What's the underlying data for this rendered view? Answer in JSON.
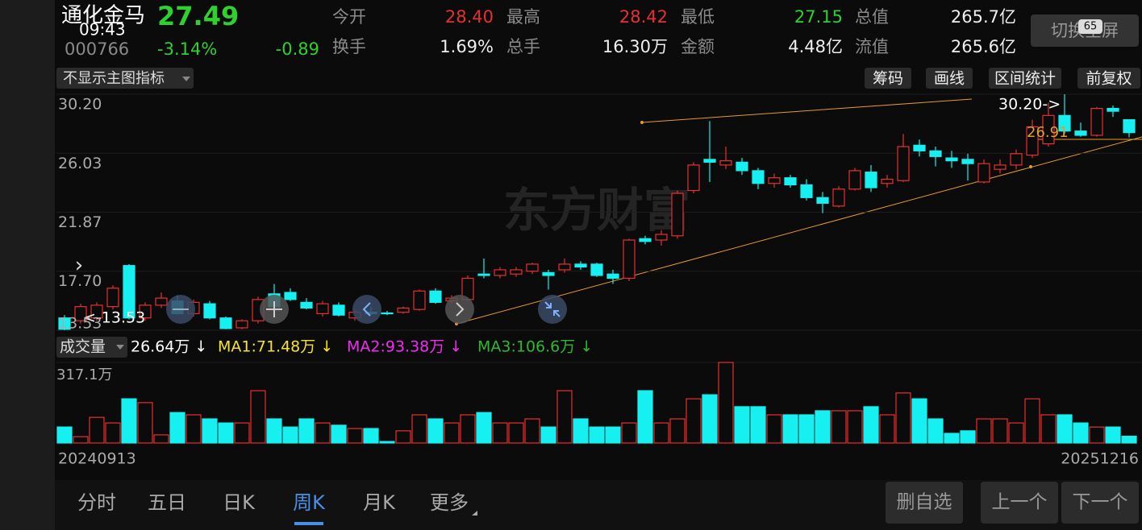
{
  "status_bar": {
    "time": "09:43",
    "battery": "65"
  },
  "header": {
    "name": "通化金马",
    "price": "27.49",
    "code": "000766",
    "change_pct": "-3.14%",
    "change": "-0.89",
    "stats": [
      {
        "label": "今开",
        "value": "28.40",
        "color": "#e8302f"
      },
      {
        "label": "最高",
        "value": "28.42",
        "color": "#e8302f"
      },
      {
        "label": "最低",
        "value": "27.15",
        "color": "#2ed12e"
      },
      {
        "label": "总值",
        "value": "265.7亿",
        "color": "#eeeeee"
      },
      {
        "label": "换手",
        "value": "1.69%",
        "color": "#eeeeee"
      },
      {
        "label": "总手",
        "value": "16.30万",
        "color": "#eeeeee"
      },
      {
        "label": "金额",
        "value": "4.48亿",
        "color": "#eeeeee"
      },
      {
        "label": "流值",
        "value": "265.6亿",
        "color": "#eeeeee"
      }
    ],
    "fullscreen_button": "切换全屏"
  },
  "toolbar": {
    "indicator": "不显示主图指标",
    "buttons": [
      "筹码",
      "画线",
      "区间统计",
      "前复权"
    ]
  },
  "price_chart": {
    "ylim": [
      13.53,
      30.2
    ],
    "yticks": [
      {
        "value": 30.2,
        "label": "30.20"
      },
      {
        "value": 26.03,
        "label": "26.03"
      },
      {
        "value": 21.87,
        "label": "21.87"
      },
      {
        "value": 17.7,
        "label": "17.70"
      },
      {
        "value": 13.53,
        "label": "13.53"
      }
    ],
    "watermark": "东方财富",
    "high_label": "30.20->",
    "low_label": "<-13.53",
    "line_label": "26.91",
    "up_color": "#e8302f",
    "down_color": "#17f0f0",
    "candles": [
      [
        14.4,
        14.6,
        13.53,
        13.6
      ],
      [
        14.2,
        15.4,
        14.0,
        15.2
      ],
      [
        14.4,
        15.5,
        14.2,
        15.3
      ],
      [
        15.2,
        16.7,
        15.0,
        16.5
      ],
      [
        18.1,
        18.2,
        14.3,
        14.4
      ],
      [
        14.4,
        15.5,
        14.2,
        15.3
      ],
      [
        15.3,
        16.2,
        15.1,
        15.8
      ],
      [
        15.6,
        16.0,
        14.6,
        14.7
      ],
      [
        14.7,
        15.7,
        14.5,
        15.5
      ],
      [
        15.4,
        15.6,
        14.3,
        14.4
      ],
      [
        14.4,
        14.5,
        13.6,
        13.65
      ],
      [
        13.7,
        14.3,
        13.6,
        14.2
      ],
      [
        14.2,
        15.9,
        14.0,
        15.7
      ],
      [
        16.1,
        16.8,
        15.0,
        15.2
      ],
      [
        16.2,
        16.5,
        15.6,
        15.7
      ],
      [
        15.5,
        15.8,
        15.0,
        15.1
      ],
      [
        14.7,
        15.6,
        14.5,
        15.4
      ],
      [
        15.3,
        15.5,
        14.5,
        14.6
      ],
      [
        14.4,
        15.0,
        14.2,
        14.8
      ],
      [
        14.8,
        15.2,
        14.6,
        14.7
      ],
      [
        14.75,
        14.9,
        14.6,
        14.7
      ],
      [
        14.8,
        15.2,
        14.7,
        15.1
      ],
      [
        15.0,
        16.4,
        14.9,
        16.3
      ],
      [
        16.3,
        16.5,
        15.4,
        15.5
      ],
      [
        15.6,
        16.0,
        15.4,
        15.8
      ],
      [
        15.7,
        17.4,
        15.6,
        17.2
      ],
      [
        17.5,
        18.6,
        17.2,
        17.4
      ],
      [
        17.4,
        18.0,
        17.2,
        17.8
      ],
      [
        17.5,
        18.0,
        17.3,
        17.8
      ],
      [
        17.7,
        18.3,
        17.5,
        18.2
      ],
      [
        17.6,
        17.8,
        16.4,
        17.4
      ],
      [
        17.8,
        18.6,
        17.6,
        18.2
      ],
      [
        18.2,
        18.4,
        17.8,
        18.0
      ],
      [
        18.2,
        18.3,
        17.3,
        17.4
      ],
      [
        17.5,
        17.8,
        16.8,
        17.2
      ],
      [
        17.2,
        20.0,
        17.0,
        19.9
      ],
      [
        20.0,
        20.2,
        19.6,
        19.8
      ],
      [
        19.9,
        20.6,
        19.5,
        20.3
      ],
      [
        20.2,
        23.4,
        20.0,
        23.2
      ],
      [
        23.4,
        25.4,
        23.2,
        25.2
      ],
      [
        25.6,
        28.3,
        24.0,
        25.4
      ],
      [
        25.2,
        26.5,
        24.9,
        25.5
      ],
      [
        25.4,
        25.7,
        24.5,
        24.8
      ],
      [
        24.8,
        25.0,
        23.5,
        23.9
      ],
      [
        23.9,
        24.6,
        23.6,
        24.3
      ],
      [
        24.3,
        24.5,
        23.6,
        23.8
      ],
      [
        23.8,
        24.2,
        22.7,
        22.9
      ],
      [
        22.9,
        23.3,
        21.8,
        22.5
      ],
      [
        22.3,
        23.7,
        22.2,
        23.5
      ],
      [
        23.5,
        25.0,
        23.4,
        24.8
      ],
      [
        24.7,
        25.2,
        23.3,
        23.6
      ],
      [
        23.9,
        24.5,
        23.6,
        24.2
      ],
      [
        24.1,
        27.4,
        24.0,
        26.5
      ],
      [
        26.6,
        27.0,
        25.8,
        26.2
      ],
      [
        26.2,
        26.5,
        25.1,
        25.8
      ],
      [
        25.7,
        26.2,
        25.0,
        25.5
      ],
      [
        25.6,
        26.0,
        24.1,
        25.3
      ],
      [
        24.0,
        25.6,
        23.9,
        25.3
      ],
      [
        24.9,
        25.6,
        24.6,
        25.2
      ],
      [
        25.2,
        26.3,
        24.9,
        26.0
      ],
      [
        25.9,
        28.4,
        25.7,
        27.9
      ],
      [
        26.7,
        29.6,
        26.5,
        28.7
      ],
      [
        28.7,
        30.2,
        27.4,
        27.6
      ],
      [
        27.6,
        28.2,
        27.2,
        27.3
      ],
      [
        27.3,
        29.3,
        27.2,
        29.2
      ],
      [
        29.2,
        29.4,
        28.6,
        29.0
      ],
      [
        28.4,
        28.42,
        27.15,
        27.49
      ]
    ]
  },
  "volume_chart": {
    "title": "成交量",
    "current": "26.64万 ↓",
    "ma1": "MA1:71.48万 ↓",
    "ma2": "MA2:93.38万 ↓",
    "ma3": "MA3:106.6万 ↓",
    "ylim": [
      0,
      317.1
    ],
    "top_label": "317.1万",
    "values": [
      63,
      25,
      101,
      79,
      174,
      159,
      32,
      120,
      111,
      95,
      79,
      79,
      206,
      95,
      63,
      95,
      79,
      70,
      57,
      57,
      6,
      48,
      111,
      95,
      79,
      111,
      120,
      79,
      79,
      95,
      63,
      206,
      95,
      63,
      63,
      79,
      206,
      79,
      95,
      174,
      190,
      317.1,
      143,
      143,
      111,
      111,
      111,
      127,
      127,
      127,
      143,
      111,
      197,
      174,
      95,
      38,
      48,
      95,
      95,
      79,
      174,
      111,
      111,
      79,
      63,
      63,
      26.64
    ]
  },
  "dates": [
    "20240913",
    "20251216"
  ],
  "tabs": [
    "分时",
    "五日",
    "日K",
    "周K",
    "月K",
    "更多"
  ],
  "active_tab": 3,
  "actions": [
    "删自选",
    "上一个",
    "下一个"
  ]
}
